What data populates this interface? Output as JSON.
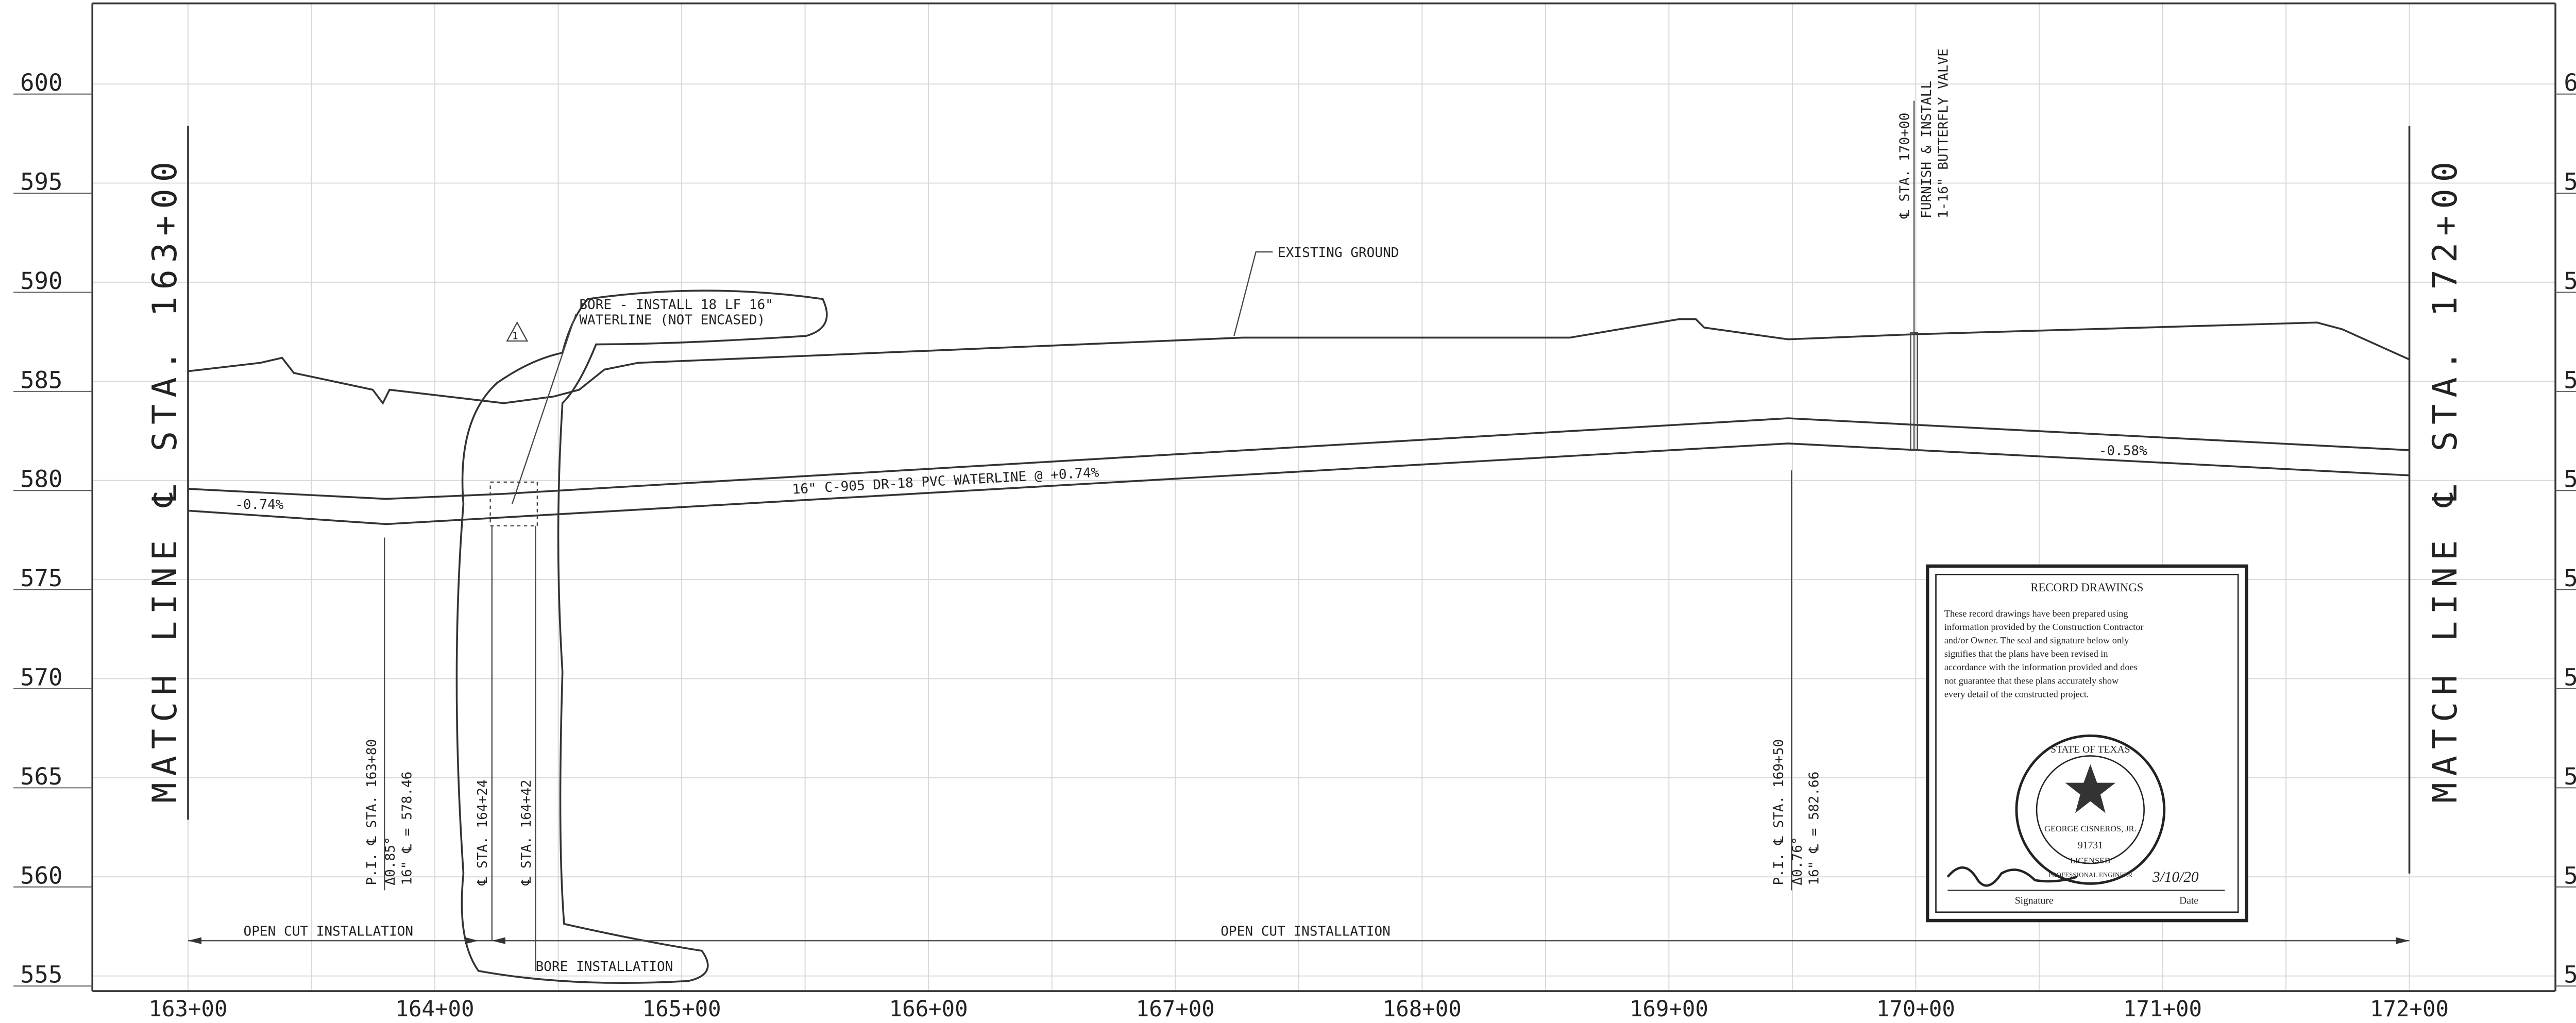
{
  "elevations": [
    "600",
    "595",
    "590",
    "585",
    "580",
    "575",
    "570",
    "565",
    "560",
    "555"
  ],
  "stations": [
    "163+00",
    "164+00",
    "165+00",
    "166+00",
    "167+00",
    "168+00",
    "169+00",
    "170+00",
    "171+00",
    "172+00"
  ],
  "match_lines": {
    "left": "MATCH LINE ℄ STA. 163+00",
    "right": "MATCH LINE ℄ STA. 172+00"
  },
  "labels": {
    "existing_ground": "EXISTING GROUND",
    "waterline": "16\" C-905 DR-18 PVC WATERLINE @ +0.74%",
    "grade_left": "-0.74%",
    "grade_right": "-0.58%",
    "open_cut_left": "OPEN CUT INSTALLATION",
    "open_cut_right": "OPEN CUT INSTALLATION",
    "bore_installation": "BORE INSTALLATION",
    "bore_note_1": "BORE - INSTALL 18 LF 16\"",
    "bore_note_2": "WATERLINE (NOT ENCASED)",
    "revision": "1"
  },
  "callouts": {
    "valve_station": "℄ STA. 170+00",
    "valve_1": "FURNISH & INSTALL",
    "valve_2": "1-16\" BUTTERFLY VALVE",
    "pi1_station": "P.I. ℄ STA. 163+80",
    "pi1_angle": "Δ0.85°",
    "pi1_elev": "16\" ℄ = 578.46",
    "bore_start": "℄ STA. 164+24",
    "bore_end": "℄ STA. 164+42",
    "pi2_station": "P.I. ℄ STA. 169+50",
    "pi2_angle": "Δ0.76°",
    "pi2_elev": "16\" ℄ = 582.66"
  },
  "record_stamp": {
    "title": "RECORD DRAWINGS",
    "body": [
      "These record drawings have been prepared using",
      "information provided by the Construction Contractor",
      "and/or Owner. The seal and signature below only",
      "signifies that the plans have been revised in",
      "accordance with the information provided and does",
      "not guarantee that these plans accurately show",
      "every detail of the constructed project."
    ],
    "seal_state": "STATE OF TEXAS",
    "seal_name": "GEORGE CISNEROS, JR.",
    "seal_number": "91731",
    "seal_licensed": "LICENSED",
    "seal_profession": "PROFESSIONAL ENGINEER",
    "date_written": "3/10/20",
    "signature_label": "Signature",
    "date_label": "Date"
  }
}
